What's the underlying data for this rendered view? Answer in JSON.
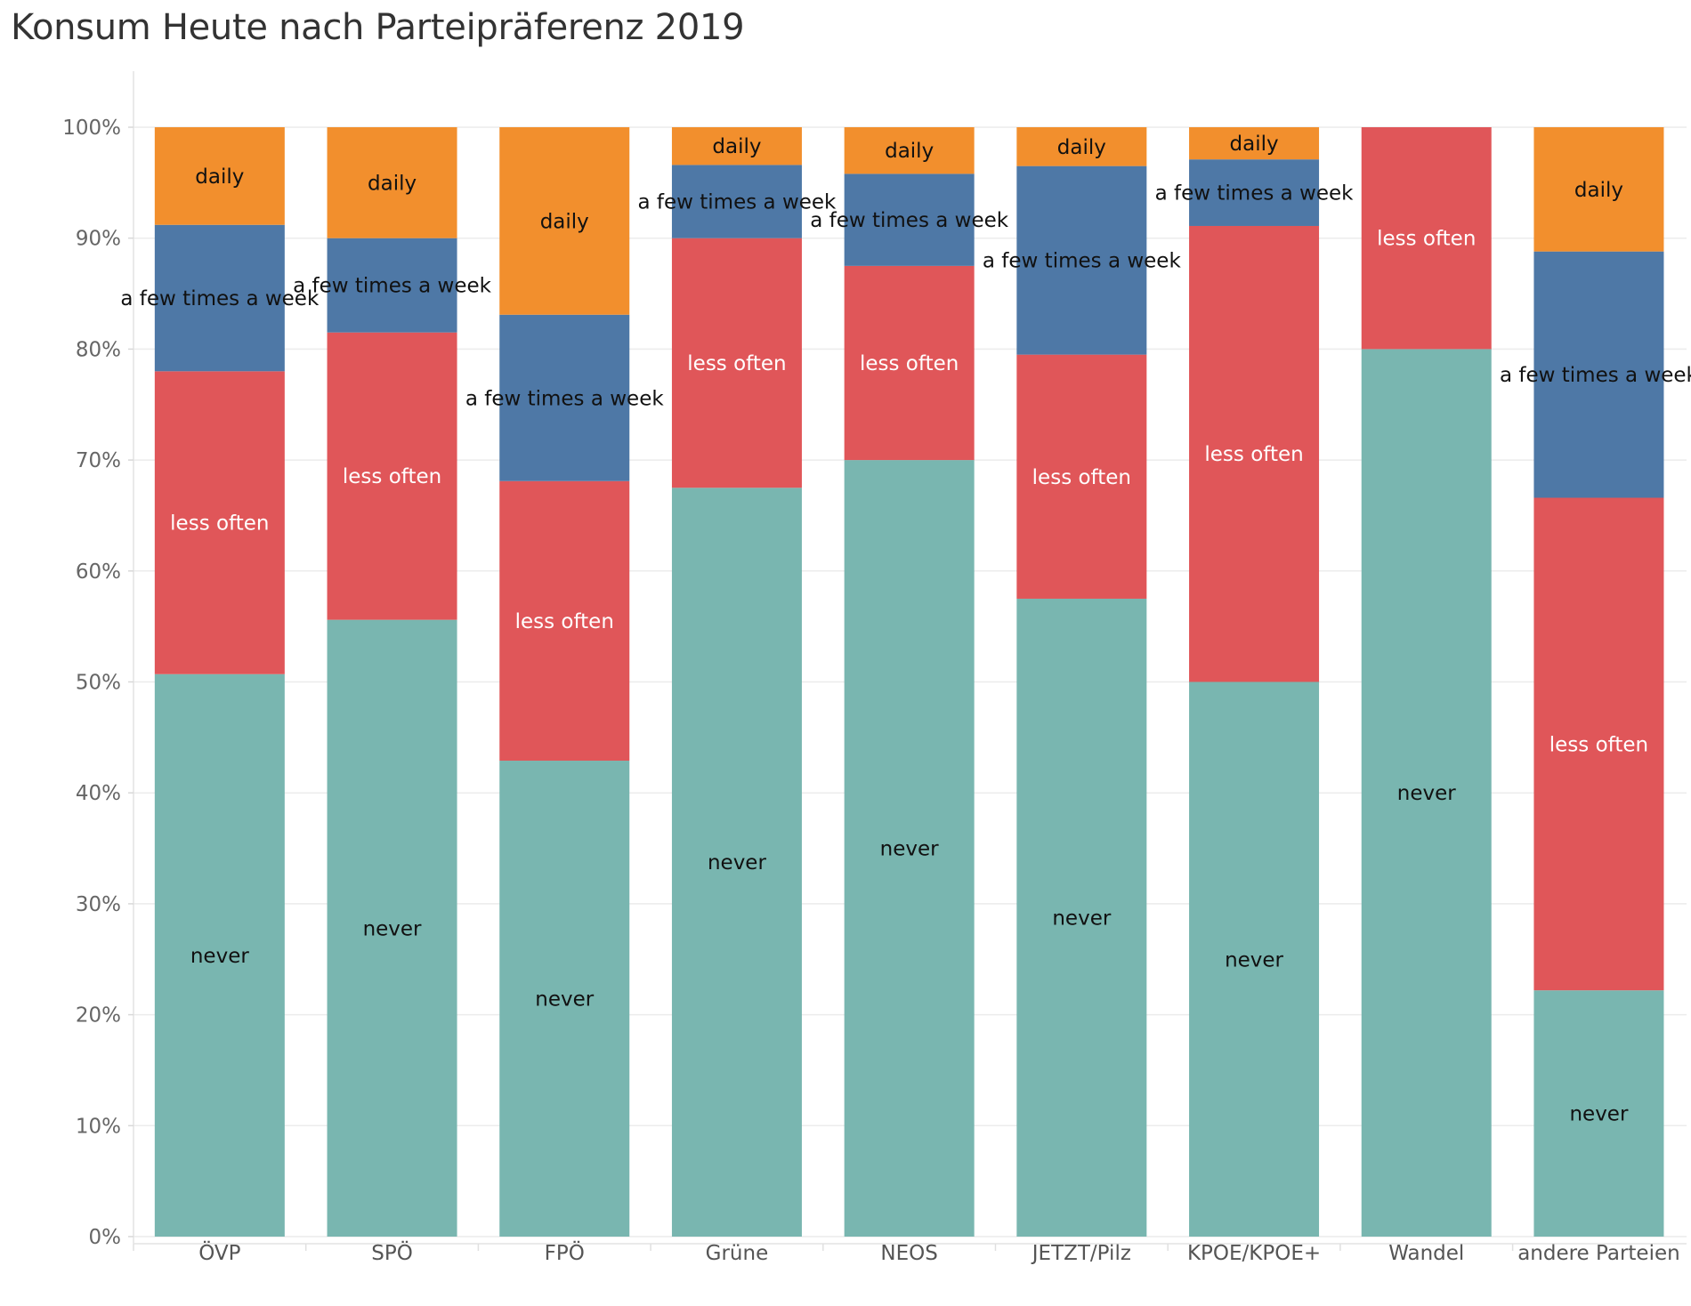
{
  "chart_data": {
    "type": "bar",
    "stacked": true,
    "normalized": true,
    "title": "Konsum Heute nach Parteipräferenz 2019",
    "xlabel": "",
    "ylabel": "",
    "ylim": [
      0,
      1
    ],
    "grid": true,
    "y_ticks": [
      {
        "value": 0.0,
        "label": "0%"
      },
      {
        "value": 0.1,
        "label": "10%"
      },
      {
        "value": 0.2,
        "label": "20%"
      },
      {
        "value": 0.3,
        "label": "30%"
      },
      {
        "value": 0.4,
        "label": "40%"
      },
      {
        "value": 0.5,
        "label": "50%"
      },
      {
        "value": 0.6,
        "label": "60%"
      },
      {
        "value": 0.7,
        "label": "70%"
      },
      {
        "value": 0.8,
        "label": "80%"
      },
      {
        "value": 0.9,
        "label": "90%"
      },
      {
        "value": 1.0,
        "label": "100%"
      }
    ],
    "categories": [
      "ÖVP",
      "SPÖ",
      "FPÖ",
      "Grüne",
      "NEOS",
      "JETZT/Pilz",
      "KPOE/KPOE+",
      "Wandel",
      "andere Parteien"
    ],
    "series": [
      {
        "name": "never",
        "color": "#79b6b0",
        "text_color": "#111111",
        "values": [
          50.7,
          55.6,
          42.9,
          67.5,
          70.0,
          57.5,
          50.0,
          80.0,
          22.2
        ]
      },
      {
        "name": "less often",
        "color": "#e05659",
        "text_color": "#ffffff",
        "values": [
          27.3,
          25.9,
          25.2,
          22.5,
          17.5,
          22.0,
          41.1,
          20.0,
          44.4
        ]
      },
      {
        "name": "a few times a week",
        "color": "#4e78a6",
        "text_color": "#111111",
        "values": [
          13.2,
          8.5,
          15.0,
          6.6,
          8.3,
          17.0,
          6.0,
          0,
          22.2
        ]
      },
      {
        "name": "daily",
        "color": "#f28f2d",
        "text_color": "#111111",
        "values": [
          8.8,
          10.0,
          16.9,
          3.4,
          4.2,
          3.5,
          2.9,
          0,
          11.2
        ]
      }
    ]
  }
}
